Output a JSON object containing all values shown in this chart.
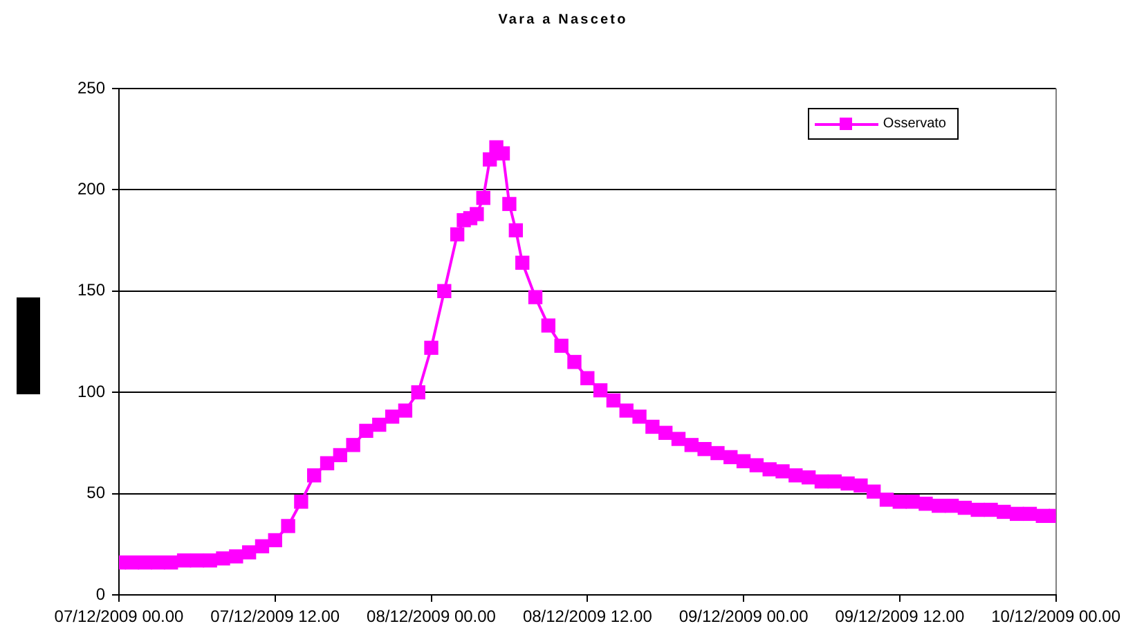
{
  "chart_data": {
    "type": "line",
    "title": "Vara a Nasceto",
    "x": [
      "2009-12-07T00:00",
      "2009-12-07T01:00",
      "2009-12-07T02:00",
      "2009-12-07T03:00",
      "2009-12-07T04:00",
      "2009-12-07T05:00",
      "2009-12-07T06:00",
      "2009-12-07T07:00",
      "2009-12-07T08:00",
      "2009-12-07T09:00",
      "2009-12-07T10:00",
      "2009-12-07T11:00",
      "2009-12-07T12:00",
      "2009-12-07T13:00",
      "2009-12-07T14:00",
      "2009-12-07T15:00",
      "2009-12-07T16:00",
      "2009-12-07T17:00",
      "2009-12-07T18:00",
      "2009-12-07T19:00",
      "2009-12-07T20:00",
      "2009-12-07T21:00",
      "2009-12-07T22:00",
      "2009-12-07T23:00",
      "2009-12-08T00:00",
      "2009-12-08T01:00",
      "2009-12-08T02:00",
      "2009-12-08T02:30",
      "2009-12-08T03:00",
      "2009-12-08T03:30",
      "2009-12-08T04:00",
      "2009-12-08T04:30",
      "2009-12-08T05:00",
      "2009-12-08T05:30",
      "2009-12-08T06:00",
      "2009-12-08T06:30",
      "2009-12-08T07:00",
      "2009-12-08T08:00",
      "2009-12-08T09:00",
      "2009-12-08T10:00",
      "2009-12-08T11:00",
      "2009-12-08T12:00",
      "2009-12-08T13:00",
      "2009-12-08T14:00",
      "2009-12-08T15:00",
      "2009-12-08T16:00",
      "2009-12-08T17:00",
      "2009-12-08T18:00",
      "2009-12-08T19:00",
      "2009-12-08T20:00",
      "2009-12-08T21:00",
      "2009-12-08T22:00",
      "2009-12-08T23:00",
      "2009-12-09T00:00",
      "2009-12-09T01:00",
      "2009-12-09T02:00",
      "2009-12-09T03:00",
      "2009-12-09T04:00",
      "2009-12-09T05:00",
      "2009-12-09T06:00",
      "2009-12-09T07:00",
      "2009-12-09T08:00",
      "2009-12-09T09:00",
      "2009-12-09T10:00",
      "2009-12-09T11:00",
      "2009-12-09T12:00",
      "2009-12-09T13:00",
      "2009-12-09T14:00",
      "2009-12-09T15:00",
      "2009-12-09T16:00",
      "2009-12-09T17:00",
      "2009-12-09T18:00",
      "2009-12-09T19:00",
      "2009-12-09T20:00",
      "2009-12-09T21:00",
      "2009-12-09T22:00",
      "2009-12-09T23:00",
      "2009-12-10T00:00"
    ],
    "series": [
      {
        "name": "Osservato",
        "color": "#ff00ff",
        "values": [
          16,
          16,
          16,
          16,
          16,
          17,
          17,
          17,
          18,
          19,
          21,
          24,
          27,
          34,
          46,
          59,
          65,
          69,
          74,
          81,
          84,
          88,
          91,
          100,
          122,
          150,
          178,
          185,
          186,
          188,
          196,
          215,
          221,
          218,
          193,
          180,
          164,
          147,
          133,
          123,
          115,
          107,
          101,
          96,
          91,
          88,
          83,
          80,
          77,
          74,
          72,
          70,
          68,
          66,
          64,
          62,
          61,
          59,
          58,
          56,
          56,
          55,
          54,
          51,
          47,
          46,
          46,
          45,
          44,
          44,
          43,
          42,
          42,
          41,
          40,
          40,
          39,
          39
        ]
      }
    ],
    "xlim": [
      "2009-12-07T00:00",
      "2009-12-10T00:00"
    ],
    "xticks": [
      {
        "value": "2009-12-07T00:00",
        "label": "07/12/2009 00.00"
      },
      {
        "value": "2009-12-07T12:00",
        "label": "07/12/2009 12.00"
      },
      {
        "value": "2009-12-08T00:00",
        "label": "08/12/2009 00.00"
      },
      {
        "value": "2009-12-08T12:00",
        "label": "08/12/2009 12.00"
      },
      {
        "value": "2009-12-09T00:00",
        "label": "09/12/2009 00.00"
      },
      {
        "value": "2009-12-09T12:00",
        "label": "09/12/2009 12.00"
      },
      {
        "value": "2009-12-10T00:00",
        "label": "10/12/2009 00.00"
      }
    ],
    "ylim": [
      0,
      250
    ],
    "yticks": [
      0,
      50,
      100,
      150,
      200,
      250
    ],
    "grid": "y",
    "legend": "top right",
    "marker": "square",
    "line_style": "solid"
  }
}
